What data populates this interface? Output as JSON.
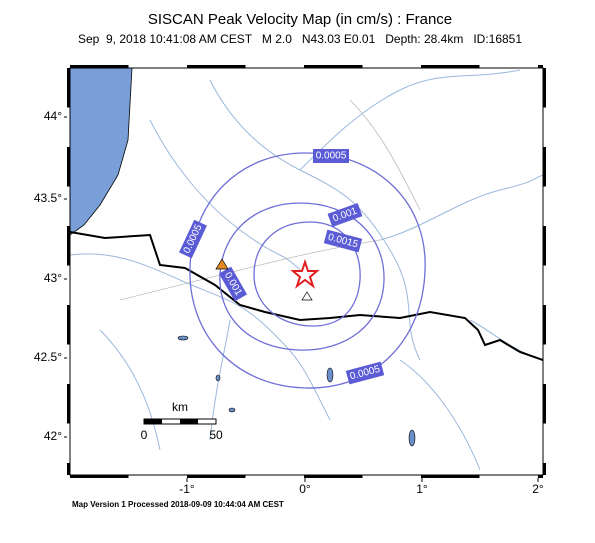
{
  "header": {
    "title": "SISCAN Peak Velocity Map (in cm/s) : France",
    "subtitle": "Sep  9, 2018 10:41:08 AM CEST   M 2.0   N43.03 E0.01   Depth: 28.4km   ID:16851"
  },
  "lat_labels": [
    "44°",
    "43.5°",
    "43°",
    "42.5°",
    "42°"
  ],
  "lon_labels": [
    "-1°",
    "0°",
    "1°",
    "2°"
  ],
  "contour_labels": [
    "0.0005",
    "0.001",
    "0.0015",
    "0.0005",
    "0.001",
    "0.0005"
  ],
  "scale_bar": {
    "unit": "km",
    "ticks": [
      "0",
      "50"
    ]
  },
  "footer": "Map Version 1 Processed 2018-09-09 10:44:04 AM CEST"
}
